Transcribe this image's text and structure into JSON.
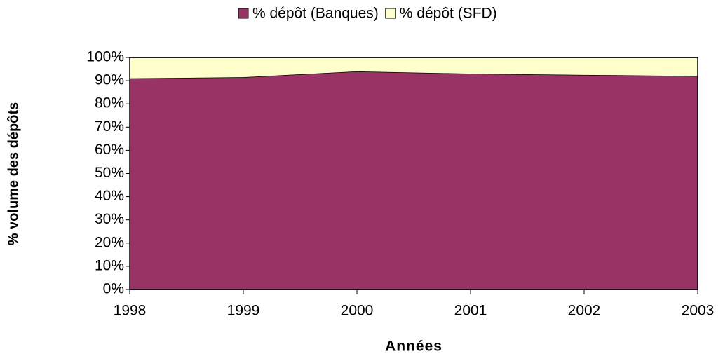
{
  "chart_data": {
    "type": "stacked_area",
    "legend_title": null,
    "y_label": "% volume des dépôts",
    "x_label": "Années",
    "x": [
      1998,
      1999,
      2000,
      2001,
      2002,
      2003
    ],
    "xlim": [
      1998,
      2003
    ],
    "xticks": [
      1998,
      1999,
      2000,
      2001,
      2002,
      2003
    ],
    "ylim": [
      0,
      100
    ],
    "yticks": [
      {
        "value": 0,
        "label": "0%"
      },
      {
        "value": 10,
        "label": "10%"
      },
      {
        "value": 20,
        "label": "20%"
      },
      {
        "value": 30,
        "label": "30%"
      },
      {
        "value": 40,
        "label": "40%"
      },
      {
        "value": 50,
        "label": "50%"
      },
      {
        "value": 60,
        "label": "60%"
      },
      {
        "value": 70,
        "label": "70%"
      },
      {
        "value": 80,
        "label": "80%"
      },
      {
        "value": 90,
        "label": "90%"
      },
      {
        "value": 100,
        "label": "100%"
      }
    ],
    "legend": "top",
    "series": [
      {
        "name": "% dépôt (Banques)",
        "color": "#993366",
        "values": [
          91,
          91.5,
          94,
          93,
          92.5,
          92
        ]
      },
      {
        "name": "% dépôt (SFD)",
        "color": "#ffffcc",
        "values": [
          9,
          8.5,
          6,
          7,
          7.5,
          8
        ]
      }
    ]
  }
}
